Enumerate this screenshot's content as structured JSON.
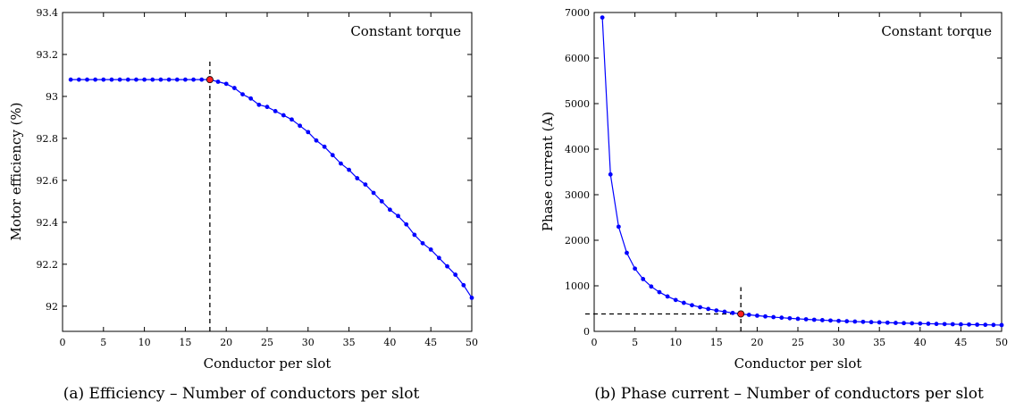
{
  "chart_data": [
    {
      "type": "line",
      "caption": "(a) Efficiency – Number of conductors per slot",
      "annotation": "Constant torque",
      "xlabel": "Conductor per slot",
      "ylabel": "Motor efficiency (%)",
      "xlim": [
        0,
        50
      ],
      "ylim": [
        91.88,
        93.4
      ],
      "xticks": [
        0,
        5,
        10,
        15,
        20,
        25,
        30,
        35,
        40,
        45,
        50
      ],
      "yticks": [
        92,
        92.2,
        92.4,
        92.6,
        92.8,
        93,
        93.2,
        93.4
      ],
      "series_color": "#0000ff",
      "highlight_color": "#ff2020",
      "highlight": {
        "x": 18,
        "y": 93.08
      },
      "guide": "vertical",
      "grid": false,
      "x": [
        1,
        2,
        3,
        4,
        5,
        6,
        7,
        8,
        9,
        10,
        11,
        12,
        13,
        14,
        15,
        16,
        17,
        18,
        19,
        20,
        21,
        22,
        23,
        24,
        25,
        26,
        27,
        28,
        29,
        30,
        31,
        32,
        33,
        34,
        35,
        36,
        37,
        38,
        39,
        40,
        41,
        42,
        43,
        44,
        45,
        46,
        47,
        48,
        49,
        50
      ],
      "y": [
        93.08,
        93.08,
        93.08,
        93.08,
        93.08,
        93.08,
        93.08,
        93.08,
        93.08,
        93.08,
        93.08,
        93.08,
        93.08,
        93.08,
        93.08,
        93.08,
        93.08,
        93.08,
        93.07,
        93.06,
        93.04,
        93.01,
        92.99,
        92.96,
        92.95,
        92.93,
        92.91,
        92.89,
        92.86,
        92.83,
        92.79,
        92.76,
        92.72,
        92.68,
        92.65,
        92.61,
        92.58,
        92.54,
        92.5,
        92.46,
        92.43,
        92.39,
        92.34,
        92.3,
        92.27,
        92.23,
        92.19,
        92.15,
        92.1,
        92.04
      ]
    },
    {
      "type": "line",
      "caption": "(b) Phase current – Number of conductors per slot",
      "annotation": "Constant torque",
      "xlabel": "Conductor per slot",
      "ylabel": "Phase current (A)",
      "xlim": [
        0,
        50
      ],
      "ylim": [
        0,
        7000
      ],
      "xticks": [
        0,
        5,
        10,
        15,
        20,
        25,
        30,
        35,
        40,
        45,
        50
      ],
      "yticks": [
        0,
        1000,
        2000,
        3000,
        4000,
        5000,
        6000,
        7000
      ],
      "series_color": "#0000ff",
      "highlight_color": "#ff2020",
      "highlight": {
        "x": 18,
        "y": 383
      },
      "guide": "both",
      "grid": false,
      "x": [
        1,
        2,
        3,
        4,
        5,
        6,
        7,
        8,
        9,
        10,
        11,
        12,
        13,
        14,
        15,
        16,
        17,
        18,
        19,
        20,
        21,
        22,
        23,
        24,
        25,
        26,
        27,
        28,
        29,
        30,
        31,
        32,
        33,
        34,
        35,
        36,
        37,
        38,
        39,
        40,
        41,
        42,
        43,
        44,
        45,
        46,
        47,
        48,
        49,
        50
      ],
      "y": [
        6890,
        3445,
        2297,
        1723,
        1378,
        1148,
        984,
        861,
        766,
        689,
        626,
        574,
        530,
        492,
        459,
        431,
        405,
        383,
        363,
        345,
        328,
        313,
        300,
        287,
        276,
        265,
        255,
        246,
        238,
        230,
        222,
        215,
        209,
        203,
        197,
        191,
        186,
        181,
        177,
        172,
        168,
        164,
        160,
        157,
        153,
        150,
        147,
        144,
        141,
        138
      ]
    }
  ]
}
